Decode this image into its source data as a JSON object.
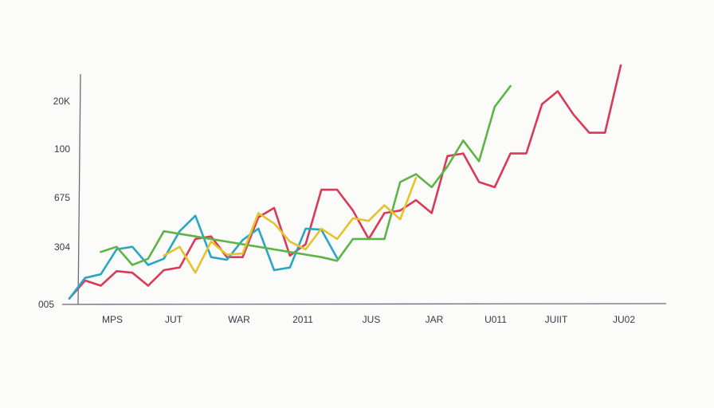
{
  "chart_data": {
    "type": "line",
    "title": "",
    "xlabel": "",
    "ylabel": "",
    "x_tick_labels": [
      "MPS",
      "JUT",
      "WAR",
      "2011",
      "JUS",
      "JAR",
      "U011",
      "JUIIT",
      "JU02"
    ],
    "y_tick_labels": [
      "005",
      "304",
      "675",
      "100",
      "20K"
    ],
    "y_tick_values": [
      0,
      1,
      2,
      3,
      4
    ],
    "ylim": [
      0,
      4.2
    ],
    "xlim": [
      0,
      38
    ],
    "grid": false,
    "legend": "none",
    "series": [
      {
        "color": "#d83a57",
        "points": [
          [
            0,
            0.05
          ],
          [
            1,
            0.4
          ],
          [
            2,
            0.3
          ],
          [
            3,
            0.58
          ],
          [
            4,
            0.55
          ],
          [
            5,
            0.3
          ],
          [
            6,
            0.6
          ],
          [
            7,
            0.65
          ],
          [
            8,
            1.2
          ],
          [
            9,
            1.25
          ],
          [
            10,
            0.85
          ],
          [
            11,
            0.85
          ],
          [
            12,
            1.62
          ],
          [
            13,
            1.8
          ],
          [
            14,
            0.88
          ],
          [
            15,
            1.1
          ],
          [
            16,
            2.15
          ],
          [
            17,
            2.15
          ],
          [
            18,
            1.75
          ],
          [
            19,
            1.2
          ],
          [
            20,
            1.7
          ],
          [
            21,
            1.75
          ],
          [
            22,
            1.95
          ],
          [
            23,
            1.7
          ],
          [
            24,
            2.8
          ],
          [
            25,
            2.85
          ],
          [
            26,
            2.3
          ],
          [
            27,
            2.2
          ],
          [
            28,
            2.85
          ],
          [
            29,
            2.85
          ],
          [
            30,
            3.8
          ],
          [
            31,
            4.05
          ],
          [
            32,
            3.6
          ],
          [
            33,
            3.25
          ],
          [
            34,
            3.25
          ],
          [
            35,
            4.55
          ]
        ]
      },
      {
        "color": "#2aa6c3",
        "points": [
          [
            0,
            0.05
          ],
          [
            1,
            0.45
          ],
          [
            2,
            0.52
          ],
          [
            3,
            1.0
          ],
          [
            4,
            1.05
          ],
          [
            5,
            0.7
          ],
          [
            6,
            0.82
          ],
          [
            7,
            1.35
          ],
          [
            8,
            1.65
          ],
          [
            9,
            0.85
          ],
          [
            10,
            0.8
          ],
          [
            11,
            1.18
          ],
          [
            12,
            1.4
          ],
          [
            13,
            0.6
          ],
          [
            14,
            0.65
          ],
          [
            15,
            1.4
          ],
          [
            16,
            1.38
          ],
          [
            17,
            0.83
          ]
        ]
      },
      {
        "color": "#5cb545",
        "points": [
          [
            2,
            0.95
          ],
          [
            3,
            1.05
          ],
          [
            4,
            0.7
          ],
          [
            5,
            0.82
          ],
          [
            6,
            1.35
          ],
          [
            16,
            0.85
          ],
          [
            17,
            0.78
          ],
          [
            18,
            1.2
          ],
          [
            19,
            1.2
          ],
          [
            20,
            1.2
          ],
          [
            21,
            2.3
          ],
          [
            22,
            2.45
          ],
          [
            23,
            2.2
          ],
          [
            24,
            2.6
          ],
          [
            25,
            3.1
          ],
          [
            26,
            2.7
          ],
          [
            27,
            3.75
          ],
          [
            28,
            4.15
          ]
        ]
      },
      {
        "color": "#e7c32b",
        "points": [
          [
            6,
            0.88
          ],
          [
            7,
            1.05
          ],
          [
            8,
            0.55
          ],
          [
            9,
            1.15
          ],
          [
            10,
            0.9
          ],
          [
            11,
            0.92
          ],
          [
            12,
            1.7
          ],
          [
            13,
            1.5
          ],
          [
            14,
            1.15
          ],
          [
            15,
            1.0
          ],
          [
            16,
            1.4
          ],
          [
            17,
            1.2
          ],
          [
            18,
            1.6
          ],
          [
            19,
            1.55
          ],
          [
            20,
            1.85
          ],
          [
            21,
            1.58
          ],
          [
            22,
            2.38
          ]
        ]
      }
    ]
  }
}
